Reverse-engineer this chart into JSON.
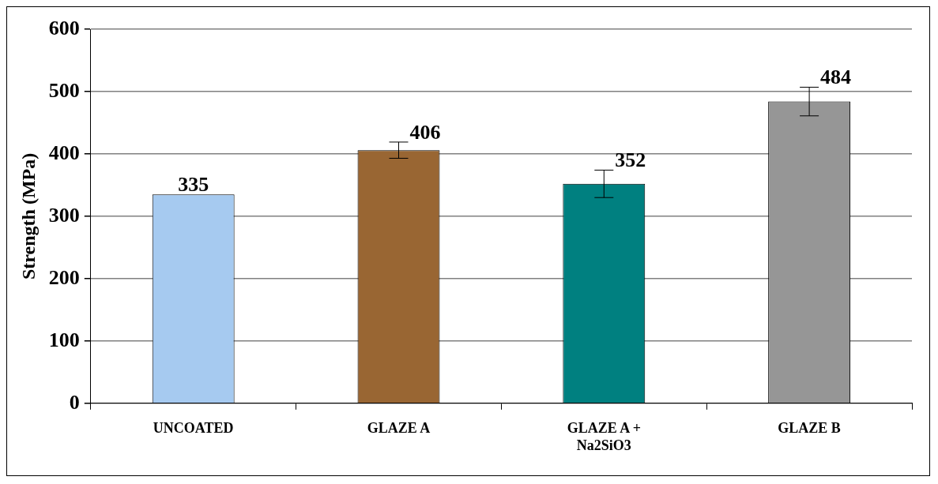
{
  "chart_data": {
    "type": "bar",
    "ylabel": "Strength (MPa)",
    "categories": [
      "UNCOATED",
      "GLAZE A",
      "GLAZE A + Na2SiO3",
      "GLAZE B"
    ],
    "values": [
      335,
      406,
      352,
      484
    ],
    "colors": [
      "#a6caf0",
      "#996633",
      "#008080",
      "#969696"
    ],
    "errors": [
      null,
      13,
      22,
      23
    ],
    "ylim": [
      0,
      600
    ],
    "yticks": [
      0,
      100,
      200,
      300,
      400,
      500,
      600
    ],
    "grid": "y",
    "data_labels": true,
    "legend": false
  }
}
